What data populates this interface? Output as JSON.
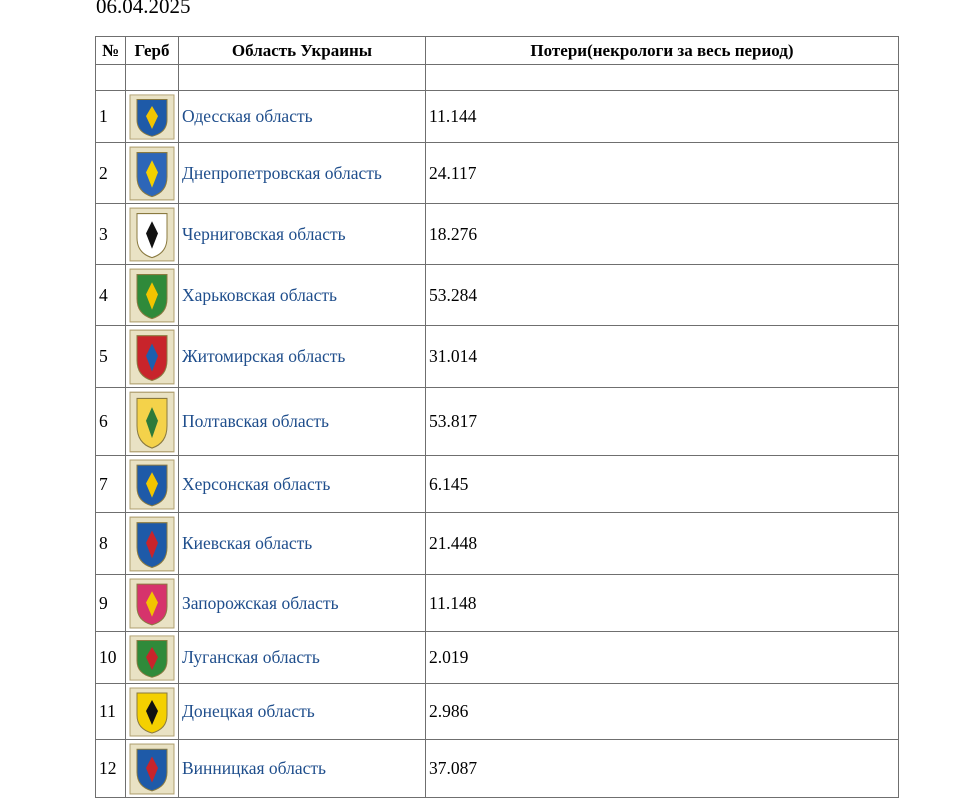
{
  "date": "06.04.2025",
  "headers": {
    "num": "№",
    "crest": "Герб",
    "region": "Область Украины",
    "losses": "Потери(некрологи за весь период)"
  },
  "rows": [
    {
      "num": "1",
      "region": "Одесская область",
      "losses": "11.144",
      "crest_icon": "odesa-coat-of-arms-icon",
      "bg": "#1e5aa8",
      "fg": "#f2c400",
      "h": 52
    },
    {
      "num": "2",
      "region": "Днепропетровская область",
      "losses": "24.117",
      "crest_icon": "dnipropetrovsk-coat-of-arms-icon",
      "bg": "#2d66b8",
      "fg": "#f4d000",
      "h": 61
    },
    {
      "num": "3",
      "region": "Черниговская область",
      "losses": "18.276",
      "crest_icon": "chernihiv-coat-of-arms-icon",
      "bg": "#ffffff",
      "fg": "#111111",
      "h": 61
    },
    {
      "num": "4",
      "region": "Харьковская область",
      "losses": "53.284",
      "crest_icon": "kharkiv-coat-of-arms-icon",
      "bg": "#2f8a3a",
      "fg": "#f2c400",
      "h": 61
    },
    {
      "num": "5",
      "region": "Житомирская область",
      "losses": "31.014",
      "crest_icon": "zhytomyr-coat-of-arms-icon",
      "bg": "#c8242b",
      "fg": "#1d5fae",
      "h": 62
    },
    {
      "num": "6",
      "region": "Полтавская область",
      "losses": "53.817",
      "crest_icon": "poltava-coat-of-arms-icon",
      "bg": "#f4d24a",
      "fg": "#2d7a3a",
      "h": 68
    },
    {
      "num": "7",
      "region": "Херсонская область",
      "losses": "6.145",
      "crest_icon": "kherson-coat-of-arms-icon",
      "bg": "#1e5aa8",
      "fg": "#f2c400",
      "h": 57
    },
    {
      "num": "8",
      "region": "Киевская область",
      "losses": "21.448",
      "crest_icon": "kyiv-oblast-coat-of-arms-icon",
      "bg": "#1e5aa8",
      "fg": "#c8242b",
      "h": 62
    },
    {
      "num": "9",
      "region": "Запорожская область",
      "losses": "11.148",
      "crest_icon": "zaporizhzhia-coat-of-arms-icon",
      "bg": "#d6336c",
      "fg": "#f2c400",
      "h": 57
    },
    {
      "num": "10",
      "region": "Луганская область",
      "losses": "2.019",
      "crest_icon": "luhansk-coat-of-arms-icon",
      "bg": "#2f8a3a",
      "fg": "#c8242b",
      "h": 52
    },
    {
      "num": "11",
      "region": "Донецкая область",
      "losses": "2.986",
      "crest_icon": "donetsk-coat-of-arms-icon",
      "bg": "#f4d000",
      "fg": "#111111",
      "h": 56
    },
    {
      "num": "12",
      "region": "Винницкая область",
      "losses": "37.087",
      "crest_icon": "vinnytsia-coat-of-arms-icon",
      "bg": "#1e5aa8",
      "fg": "#c8242b",
      "h": 58
    }
  ]
}
